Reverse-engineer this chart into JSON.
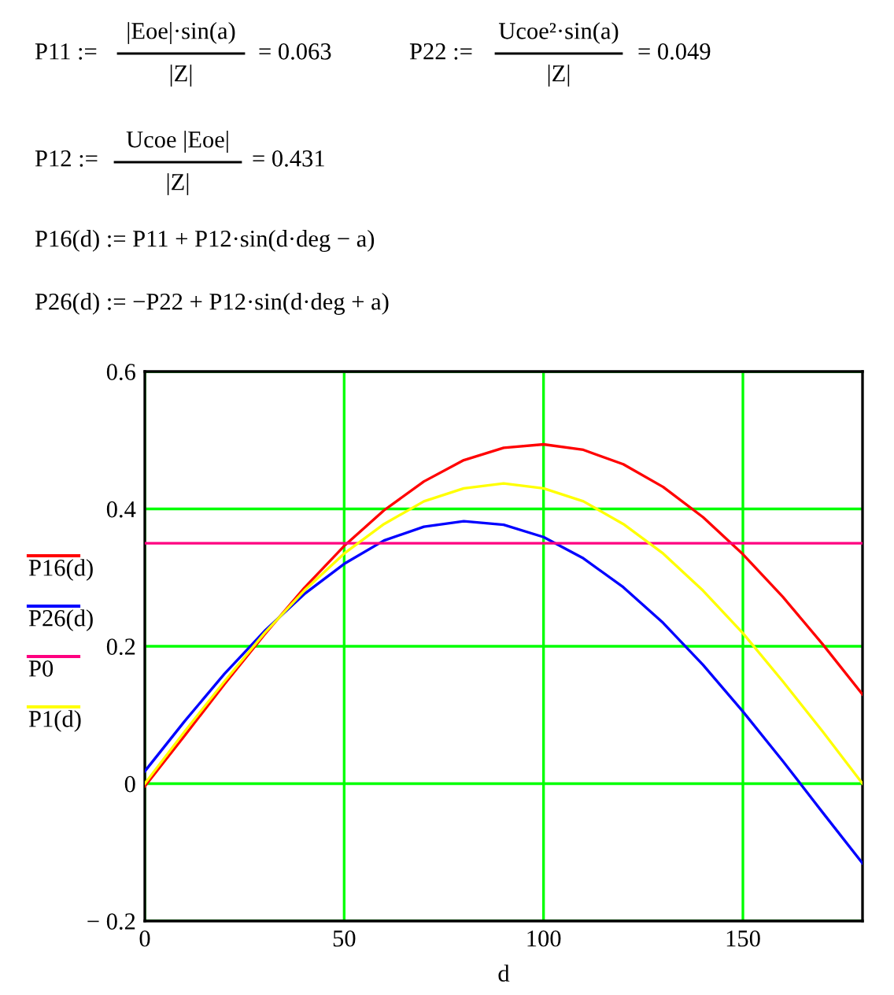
{
  "chart_data": {
    "type": "line",
    "xlabel": "d",
    "annotations": [
      "P11 :=",
      "|Eoe|·sin(a)",
      "|Z|",
      "= 0.063",
      "P22 :=",
      "Ucoe²·sin(a)",
      "|Z|",
      "= 0.049",
      "P12 :=",
      "Ucoe |Eoe|",
      "|Z|",
      "= 0.431",
      "P16(d) := P11 + P12·sin(d·deg − a)",
      "P26(d) := −P22 + P12·sin(d·deg + a)"
    ],
    "x": [
      0,
      10,
      20,
      30,
      40,
      50,
      60,
      70,
      80,
      90,
      100,
      110,
      120,
      130,
      140,
      150,
      160,
      170,
      180
    ],
    "series": [
      {
        "name": "P16(d)",
        "color": "#ff0000",
        "values": [
          -0.004,
          0.07,
          0.145,
          0.217,
          0.285,
          0.346,
          0.398,
          0.44,
          0.471,
          0.489,
          0.494,
          0.486,
          0.465,
          0.432,
          0.388,
          0.334,
          0.272,
          0.203,
          0.13
        ]
      },
      {
        "name": "P26(d)",
        "color": "#0000ff",
        "values": [
          0.018,
          0.091,
          0.16,
          0.222,
          0.276,
          0.32,
          0.354,
          0.374,
          0.382,
          0.377,
          0.359,
          0.328,
          0.286,
          0.234,
          0.173,
          0.105,
          0.033,
          -0.042,
          -0.116
        ]
      },
      {
        "name": "P0",
        "color": "#ff0080",
        "values": [
          0.35,
          0.35,
          0.35,
          0.35,
          0.35,
          0.35,
          0.35,
          0.35,
          0.35,
          0.35,
          0.35,
          0.35,
          0.35,
          0.35,
          0.35,
          0.35,
          0.35,
          0.35,
          0.35
        ]
      },
      {
        "name": "P1(d)",
        "color": "#ffff00",
        "values": [
          0.0,
          0.076,
          0.149,
          0.219,
          0.281,
          0.335,
          0.378,
          0.411,
          0.43,
          0.437,
          0.43,
          0.411,
          0.378,
          0.335,
          0.281,
          0.219,
          0.149,
          0.076,
          0.0
        ]
      }
    ],
    "xlim": [
      0,
      180
    ],
    "xticks": [
      0,
      50,
      100,
      150
    ],
    "ylim": [
      -0.2,
      0.6
    ],
    "yticks": [
      {
        "value": -0.2,
        "label": "− 0.2"
      },
      0,
      0.2,
      0.4,
      0.6
    ],
    "grid": true,
    "legend": "left",
    "marker": "none",
    "line_style": "solid"
  }
}
